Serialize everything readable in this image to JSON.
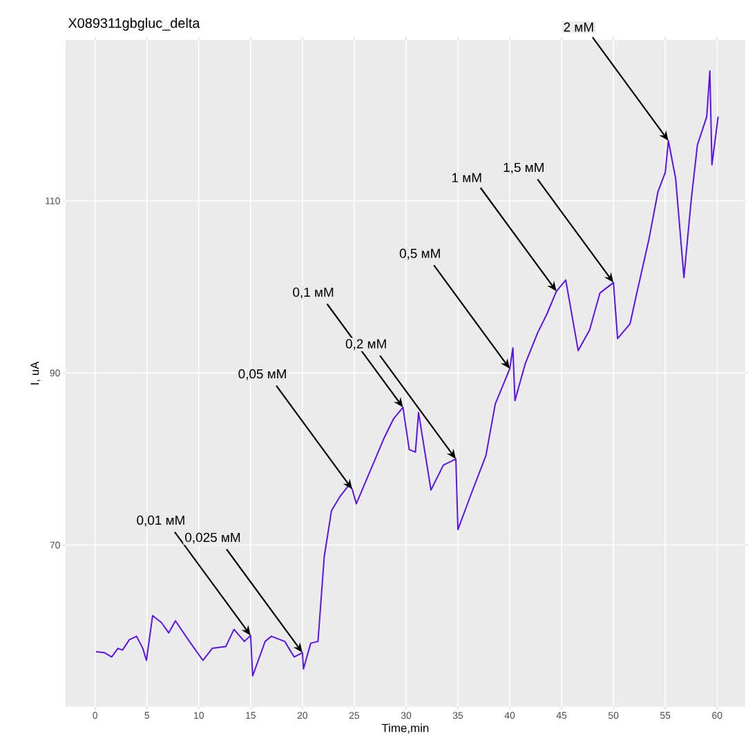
{
  "chart_data": {
    "type": "line",
    "title": "X089311gbgluc_delta",
    "xlabel": "Time,min",
    "ylabel": "I, uA",
    "xlim": [
      -2.85,
      62.7
    ],
    "ylim": [
      51.2,
      128.7
    ],
    "xticks": [
      0,
      5,
      10,
      15,
      20,
      25,
      30,
      35,
      40,
      45,
      50,
      55,
      60
    ],
    "yticks": [
      70,
      90,
      110
    ],
    "grid": true,
    "series": [
      {
        "color": "#5a12f0",
        "x": [
          0.1,
          0.9,
          1.6,
          2.2,
          2.65,
          3.3,
          4.0,
          4.6,
          4.95,
          5.55,
          6.4,
          7.1,
          7.75,
          9.1,
          10.4,
          11.3,
          12.6,
          13.4,
          14.4,
          15.0,
          15.2,
          16.4,
          17.0,
          18.3,
          19.2,
          20.0,
          20.1,
          20.8,
          21.5,
          22.1,
          22.8,
          23.6,
          24.5,
          24.8,
          25.2,
          27.9,
          28.8,
          29.7,
          30.3,
          30.9,
          31.2,
          32.4,
          33.6,
          34.8,
          35.0,
          36.2,
          37.7,
          38.6,
          40.0,
          40.3,
          40.5,
          41.5,
          42.7,
          43.6,
          44.5,
          45.4,
          46.6,
          47.7,
          48.7,
          50.0,
          50.4,
          51.6,
          52.2,
          53.4,
          54.3,
          55.0,
          55.3,
          56.0,
          56.8,
          57.5,
          58.1,
          59.0,
          59.3,
          59.5,
          60.1
        ],
        "values": [
          57.6,
          57.5,
          57.0,
          58.0,
          57.8,
          59.0,
          59.4,
          58.0,
          56.6,
          61.8,
          61.0,
          59.8,
          61.2,
          58.8,
          56.6,
          58.0,
          58.2,
          60.2,
          58.8,
          59.5,
          54.8,
          58.8,
          59.4,
          58.8,
          57.0,
          57.5,
          55.6,
          58.6,
          58.8,
          68.6,
          74.0,
          75.6,
          77.0,
          76.5,
          74.8,
          82.5,
          84.7,
          86,
          81.1,
          80.8,
          85.4,
          76.4,
          79.3,
          80,
          71.8,
          75.7,
          80.4,
          86.4,
          90.5,
          92.9,
          86.8,
          91.1,
          94.7,
          96.9,
          99.5,
          100.8,
          92.6,
          95.0,
          99.3,
          100.5,
          94.0,
          95.7,
          99.0,
          105.4,
          111.1,
          113.3,
          117,
          112.6,
          101.1,
          110.1,
          116.5,
          119.8,
          125.1,
          114.2,
          119.8
        ]
      }
    ],
    "annotations": [
      {
        "text": "0,01 мМ",
        "x": 15,
        "y": 59.5
      },
      {
        "text": "0,025 мМ",
        "x": 20,
        "y": 57.5
      },
      {
        "text": "0,05 мМ",
        "x": 24.8,
        "y": 76.5
      },
      {
        "text": "0,1 мМ",
        "x": 29.7,
        "y": 86
      },
      {
        "text": "0,2 мМ",
        "x": 34.8,
        "y": 80
      },
      {
        "text": "0,5 мМ",
        "x": 40,
        "y": 90.5
      },
      {
        "text": "1 мМ",
        "x": 44.5,
        "y": 99.5
      },
      {
        "text": "1,5 мМ",
        "x": 50,
        "y": 100.5
      },
      {
        "text": "2 мМ",
        "x": 55.3,
        "y": 117
      }
    ]
  }
}
